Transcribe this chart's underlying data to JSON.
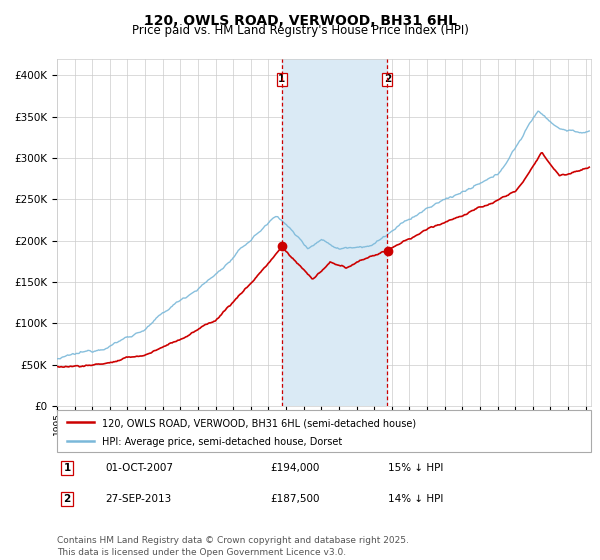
{
  "title": "120, OWLS ROAD, VERWOOD, BH31 6HL",
  "subtitle": "Price paid vs. HM Land Registry's House Price Index (HPI)",
  "title_fontsize": 10,
  "subtitle_fontsize": 8.5,
  "ylim": [
    0,
    420000
  ],
  "yticks": [
    0,
    50000,
    100000,
    150000,
    200000,
    250000,
    300000,
    350000,
    400000
  ],
  "ytick_labels": [
    "£0",
    "£50K",
    "£100K",
    "£150K",
    "£200K",
    "£250K",
    "£300K",
    "£350K",
    "£400K"
  ],
  "hpi_color": "#7ab8d9",
  "price_color": "#cc0000",
  "sale1_date_num": 2007.75,
  "sale2_date_num": 2013.74,
  "sale1_price": 194000,
  "sale2_price": 187500,
  "shading_color": "#daeaf5",
  "vline_color": "#cc0000",
  "background_color": "#ffffff",
  "grid_color": "#cccccc",
  "legend_label_price": "120, OWLS ROAD, VERWOOD, BH31 6HL (semi-detached house)",
  "legend_label_hpi": "HPI: Average price, semi-detached house, Dorset",
  "sale1_label": "1",
  "sale2_label": "2",
  "footer": "Contains HM Land Registry data © Crown copyright and database right 2025.\nThis data is licensed under the Open Government Licence v3.0.",
  "footer_fontsize": 6.5,
  "xlim_start": 1995,
  "xlim_end": 2025.3
}
